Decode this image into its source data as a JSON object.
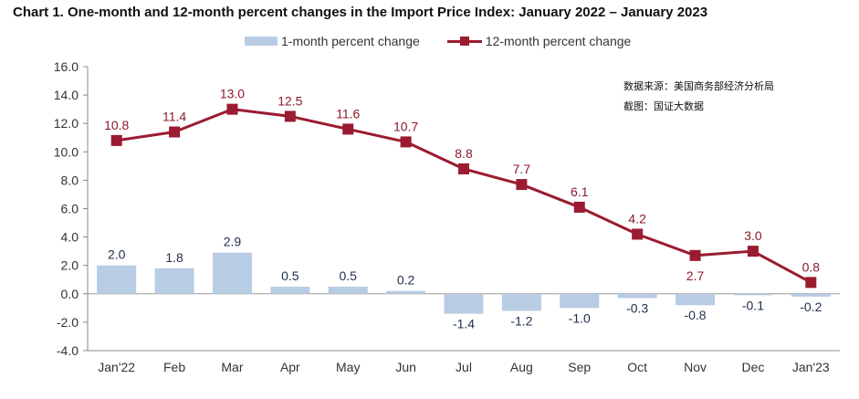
{
  "chart_data": {
    "type": "bar+line",
    "title": "Chart 1. One-month and 12-month percent changes in the Import Price Index: January 2022 – January 2023",
    "categories": [
      "Jan'22",
      "Feb",
      "Mar",
      "Apr",
      "May",
      "Jun",
      "Jul",
      "Aug",
      "Sep",
      "Oct",
      "Nov",
      "Dec",
      "Jan'23"
    ],
    "series": [
      {
        "name": "1-month percent change",
        "type": "bar",
        "color": "#b8cce4",
        "label_color": "#1f2d4d",
        "values": [
          2.0,
          1.8,
          2.9,
          0.5,
          0.5,
          0.2,
          -1.4,
          -1.2,
          -1.0,
          -0.3,
          -0.8,
          -0.1,
          -0.2
        ]
      },
      {
        "name": "12-month percent change",
        "type": "line",
        "color": "#9b1b30",
        "label_color": "#8b1a2b",
        "values": [
          10.8,
          11.4,
          13.0,
          12.5,
          11.6,
          10.7,
          8.8,
          7.7,
          6.1,
          4.2,
          2.7,
          3.0,
          0.8
        ]
      }
    ],
    "ylim": [
      -4.0,
      16.0
    ],
    "yticks": [
      "16.0",
      "14.0",
      "12.0",
      "10.0",
      "8.0",
      "6.0",
      "4.0",
      "2.0",
      "0.0",
      "-2.0",
      "-4.0"
    ],
    "xlabel": "",
    "ylabel": "",
    "grid": false,
    "legend_position": "top"
  },
  "annotations": {
    "source": "数据来源：美国商务部经济分析局",
    "credit": "截图：国证大数据"
  }
}
